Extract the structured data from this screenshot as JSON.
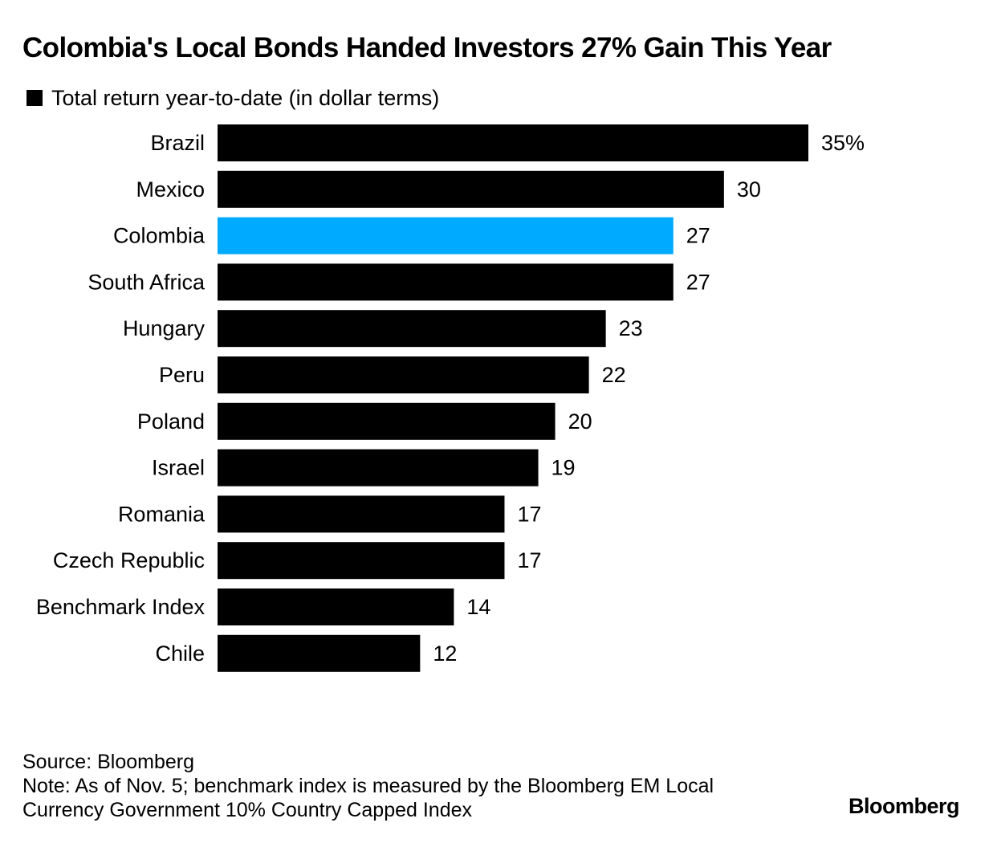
{
  "title": "Colombia's Local Bonds Handed Investors 27% Gain This Year",
  "legend": {
    "label": "Total return year-to-date (in dollar terms)",
    "color": "#000000"
  },
  "chart_data": {
    "type": "bar",
    "orientation": "horizontal",
    "categories": [
      "Brazil",
      "Mexico",
      "Colombia",
      "South Africa",
      "Hungary",
      "Peru",
      "Poland",
      "Israel",
      "Romania",
      "Czech Republic",
      "Benchmark Index",
      "Chile"
    ],
    "values": [
      35,
      30,
      27,
      27,
      23,
      22,
      20,
      19,
      17,
      17,
      14,
      12
    ],
    "value_labels": [
      "35%",
      "30",
      "27",
      "27",
      "23",
      "22",
      "20",
      "19",
      "17",
      "17",
      "14",
      "12"
    ],
    "series": [
      {
        "name": "Total return year-to-date (in dollar terms)",
        "values": [
          35,
          30,
          27,
          27,
          23,
          22,
          20,
          19,
          17,
          17,
          14,
          12
        ]
      }
    ],
    "colors": [
      "#000000",
      "#000000",
      "#00aaff",
      "#000000",
      "#000000",
      "#000000",
      "#000000",
      "#000000",
      "#000000",
      "#000000",
      "#000000",
      "#000000"
    ],
    "highlight": "Colombia",
    "default_color": "#000000",
    "highlight_color": "#00aaff",
    "xlim": [
      0,
      35
    ],
    "grid": false,
    "legend_position": "top-left"
  },
  "footer": {
    "source": "Source: Bloomberg",
    "note_line1": "Note: As of Nov. 5; benchmark index is measured by the Bloomberg EM Local",
    "note_line2": "Currency Government 10% Country Capped Index"
  },
  "logo": "Bloomberg"
}
